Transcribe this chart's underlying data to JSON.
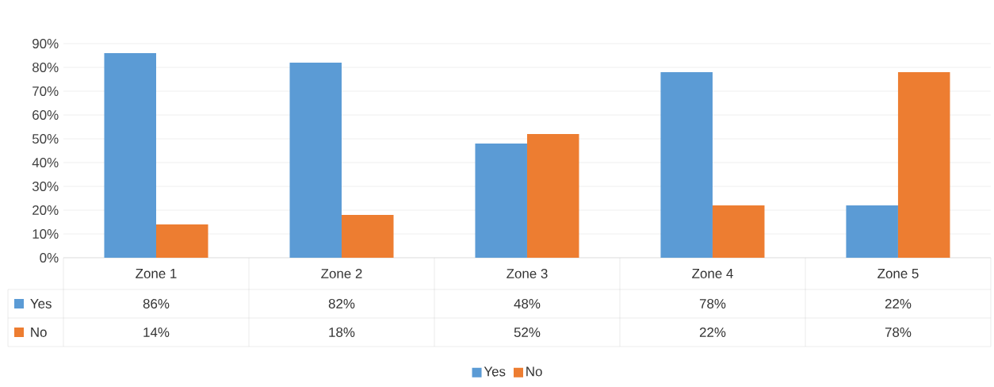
{
  "chart_data": {
    "type": "bar",
    "categories": [
      "Zone 1",
      "Zone 2",
      "Zone 3",
      "Zone 4",
      "Zone 5"
    ],
    "series": [
      {
        "name": "Yes",
        "color": "#5b9bd5",
        "values": [
          86,
          82,
          48,
          78,
          22
        ],
        "value_labels": [
          "86%",
          "82%",
          "48%",
          "78%",
          "22%"
        ]
      },
      {
        "name": "No",
        "color": "#ed7d31",
        "values": [
          14,
          18,
          52,
          22,
          78
        ],
        "value_labels": [
          "14%",
          "18%",
          "52%",
          "22%",
          "78%"
        ]
      }
    ],
    "ylim": [
      0,
      90
    ],
    "yticks": [
      {
        "value": 0,
        "label": "0%"
      },
      {
        "value": 10,
        "label": "10%"
      },
      {
        "value": 20,
        "label": "20%"
      },
      {
        "value": 30,
        "label": "30%"
      },
      {
        "value": 40,
        "label": "40%"
      },
      {
        "value": 50,
        "label": "50%"
      },
      {
        "value": 60,
        "label": "60%"
      },
      {
        "value": 70,
        "label": "70%"
      },
      {
        "value": 80,
        "label": "80%"
      },
      {
        "value": 90,
        "label": "90%"
      }
    ],
    "grid": "y",
    "legend": "bottom"
  }
}
